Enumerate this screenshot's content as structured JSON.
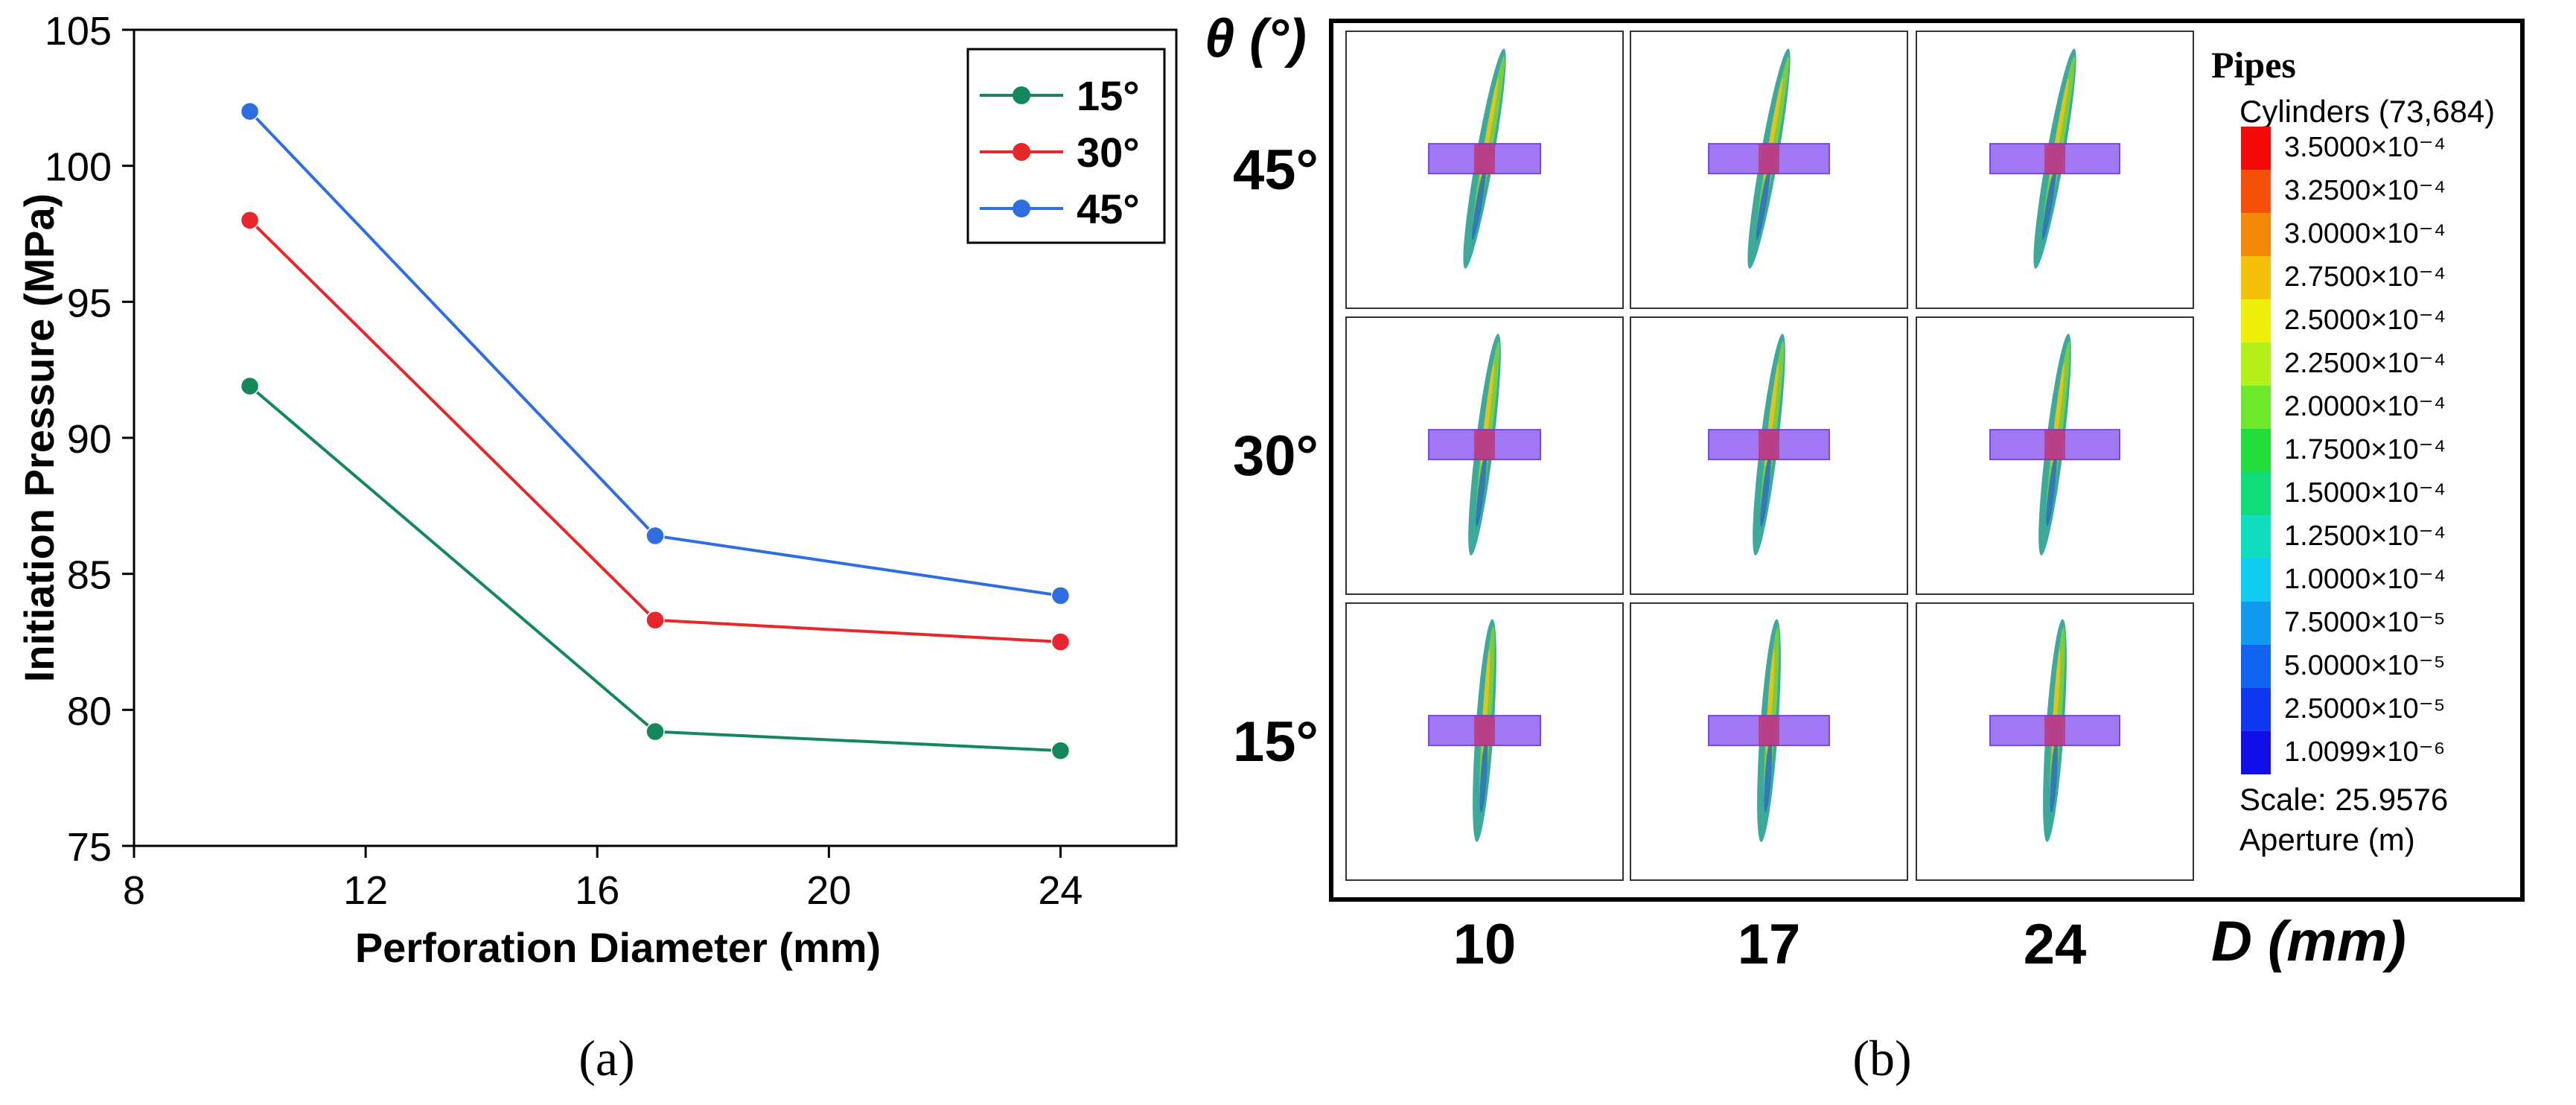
{
  "chart_data": [
    {
      "type": "line",
      "panel_label": "(a)",
      "title": "",
      "xlabel": "Perforation Diameter (mm)",
      "ylabel": "Initiation Pressure (MPa)",
      "xlim": [
        8,
        26
      ],
      "ylim": [
        75,
        105
      ],
      "xticks": [
        8,
        12,
        16,
        20,
        24
      ],
      "yticks": [
        75,
        80,
        85,
        90,
        95,
        100,
        105
      ],
      "x": [
        10,
        17,
        24
      ],
      "legend_position": "top-right",
      "series": [
        {
          "name": "15°",
          "values": [
            91.9,
            79.2,
            78.5
          ],
          "color": "#14885a"
        },
        {
          "name": "30°",
          "values": [
            98.0,
            83.3,
            82.5
          ],
          "color": "#e8262b"
        },
        {
          "name": "45°",
          "values": [
            102.0,
            86.4,
            84.2
          ],
          "color": "#2f6ee0"
        }
      ]
    },
    {
      "type": "image-grid",
      "panel_label": "(b)",
      "y_axis_title": "θ (°)",
      "x_axis_title": "D (mm)",
      "rows": [
        "45°",
        "30°",
        "15°"
      ],
      "columns": [
        "10",
        "17",
        "24"
      ],
      "legend": {
        "title": "Pipes",
        "subtitle": "Cylinders (73,684)",
        "entries": [
          {
            "label": "3.5000×10⁻⁴",
            "color": "#f50a0a"
          },
          {
            "label": "3.2500×10⁻⁴",
            "color": "#f5500a"
          },
          {
            "label": "3.0000×10⁻⁴",
            "color": "#f58a0a"
          },
          {
            "label": "2.7500×10⁻⁴",
            "color": "#f5c00a"
          },
          {
            "label": "2.5000×10⁻⁴",
            "color": "#eef00a"
          },
          {
            "label": "2.2500×10⁻⁴",
            "color": "#b6f01a"
          },
          {
            "label": "2.0000×10⁻⁴",
            "color": "#6ee82a"
          },
          {
            "label": "1.7500×10⁻⁴",
            "color": "#22dc3a"
          },
          {
            "label": "1.5000×10⁻⁴",
            "color": "#10dc7a"
          },
          {
            "label": "1.2500×10⁻⁴",
            "color": "#10dcbe"
          },
          {
            "label": "1.0000×10⁻⁴",
            "color": "#10ccf0"
          },
          {
            "label": "7.5000×10⁻⁵",
            "color": "#109af0"
          },
          {
            "label": "5.0000×10⁻⁵",
            "color": "#1064f0"
          },
          {
            "label": "2.5000×10⁻⁵",
            "color": "#1038f0"
          },
          {
            "label": "1.0099×10⁻⁶",
            "color": "#1010e6"
          }
        ],
        "scale_text": "Scale: 25.9576",
        "aperture_text": "Aperture (m)"
      }
    }
  ]
}
